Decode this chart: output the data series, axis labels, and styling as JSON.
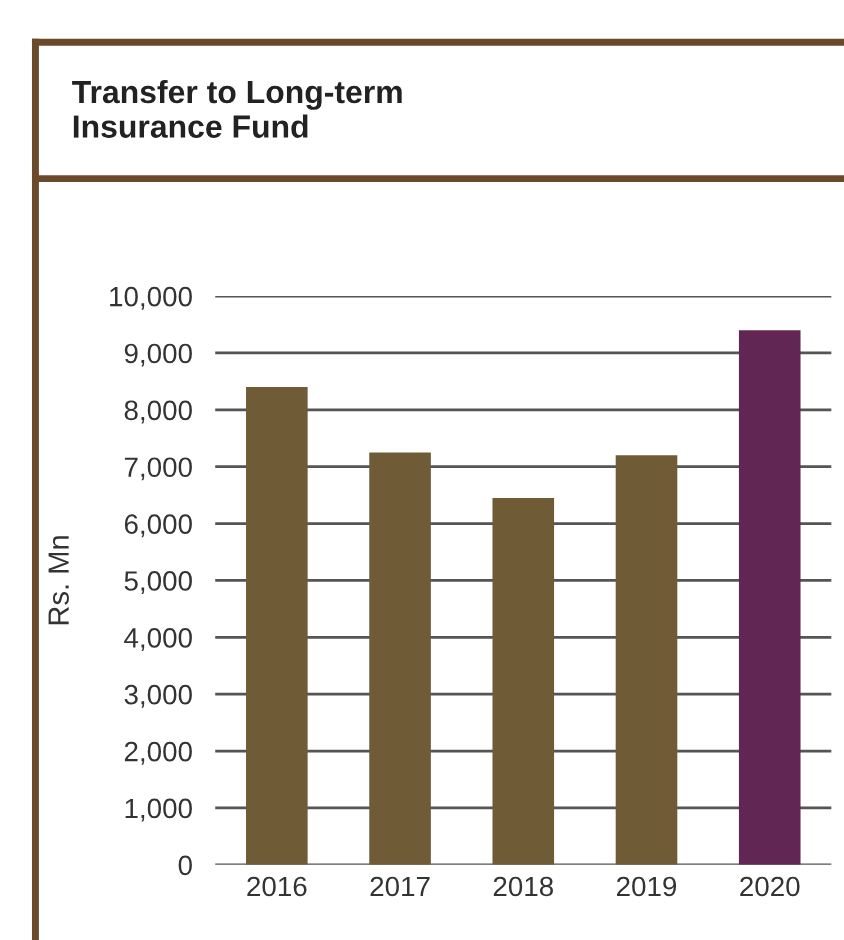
{
  "chart_data": {
    "type": "bar",
    "title": "Transfer to Long-term\nInsurance Fund",
    "ylabel": "Rs. Mn",
    "categories": [
      "2016",
      "2017",
      "2018",
      "2019",
      "2020"
    ],
    "values": [
      8400,
      7250,
      6450,
      7200,
      9400
    ],
    "colors": [
      "#6f5c37",
      "#6f5c37",
      "#6f5c37",
      "#6f5c37",
      "#612654"
    ],
    "ylim": [
      0,
      10000
    ],
    "yticks": [
      {
        "value": 0,
        "label": "0"
      },
      {
        "value": 1000,
        "label": "1,000"
      },
      {
        "value": 2000,
        "label": "2,000"
      },
      {
        "value": 3000,
        "label": "3,000"
      },
      {
        "value": 4000,
        "label": "4,000"
      },
      {
        "value": 5000,
        "label": "5,000"
      },
      {
        "value": 6000,
        "label": "6,000"
      },
      {
        "value": 7000,
        "label": "7,000"
      },
      {
        "value": 8000,
        "label": "8,000"
      },
      {
        "value": 9000,
        "label": "9,000"
      },
      {
        "value": 10000,
        "label": "10,000"
      }
    ],
    "grid": "y"
  }
}
